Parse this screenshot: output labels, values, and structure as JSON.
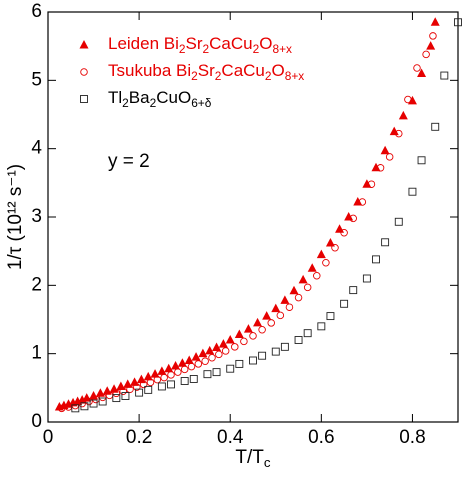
{
  "chart_data": {
    "type": "scatter",
    "x_label": "T/Tc",
    "y_label": "1/τ (10¹² s⁻¹)",
    "annotation": "y = 2",
    "xlim": [
      0,
      0.9
    ],
    "ylim": [
      0,
      6
    ],
    "xticks": [
      0,
      0.2,
      0.4,
      0.6,
      0.8
    ],
    "yticks": [
      0,
      1,
      2,
      3,
      4,
      5,
      6
    ],
    "series": [
      {
        "name": "Leiden Bi2Sr2CaCu2O8+x",
        "color": "#e60000",
        "marker": "triangle",
        "x": [
          0.025,
          0.035,
          0.045,
          0.055,
          0.065,
          0.075,
          0.085,
          0.1,
          0.115,
          0.13,
          0.145,
          0.16,
          0.175,
          0.19,
          0.205,
          0.22,
          0.235,
          0.25,
          0.265,
          0.28,
          0.295,
          0.31,
          0.325,
          0.34,
          0.355,
          0.37,
          0.385,
          0.4,
          0.42,
          0.44,
          0.46,
          0.48,
          0.5,
          0.52,
          0.54,
          0.56,
          0.58,
          0.6,
          0.62,
          0.64,
          0.66,
          0.68,
          0.7,
          0.72,
          0.74,
          0.76,
          0.78,
          0.8,
          0.82,
          0.84,
          0.85
        ],
        "values": [
          0.22,
          0.24,
          0.26,
          0.28,
          0.3,
          0.32,
          0.35,
          0.38,
          0.42,
          0.45,
          0.48,
          0.52,
          0.55,
          0.58,
          0.62,
          0.66,
          0.7,
          0.74,
          0.78,
          0.82,
          0.86,
          0.9,
          0.95,
          1.0,
          1.04,
          1.09,
          1.14,
          1.2,
          1.28,
          1.36,
          1.45,
          1.55,
          1.66,
          1.78,
          1.92,
          2.08,
          2.25,
          2.45,
          2.62,
          2.82,
          3.0,
          3.22,
          3.48,
          3.72,
          3.97,
          4.25,
          4.48,
          4.7,
          5.1,
          5.5,
          5.85
        ]
      },
      {
        "name": "Tsukuba Bi2Sr2CaCu2O8+x",
        "color": "#e60000",
        "marker": "circle",
        "x": [
          0.03,
          0.045,
          0.06,
          0.075,
          0.09,
          0.105,
          0.12,
          0.135,
          0.15,
          0.165,
          0.18,
          0.195,
          0.21,
          0.225,
          0.24,
          0.255,
          0.27,
          0.285,
          0.3,
          0.315,
          0.33,
          0.345,
          0.36,
          0.375,
          0.39,
          0.41,
          0.43,
          0.45,
          0.47,
          0.49,
          0.51,
          0.53,
          0.55,
          0.57,
          0.59,
          0.61,
          0.63,
          0.65,
          0.67,
          0.69,
          0.71,
          0.73,
          0.75,
          0.77,
          0.79,
          0.81,
          0.83,
          0.845
        ],
        "values": [
          0.2,
          0.22,
          0.24,
          0.27,
          0.3,
          0.33,
          0.36,
          0.39,
          0.42,
          0.45,
          0.48,
          0.51,
          0.55,
          0.58,
          0.62,
          0.65,
          0.69,
          0.73,
          0.77,
          0.81,
          0.85,
          0.89,
          0.94,
          0.99,
          1.04,
          1.1,
          1.18,
          1.26,
          1.35,
          1.45,
          1.56,
          1.68,
          1.82,
          1.97,
          2.14,
          2.33,
          2.55,
          2.77,
          2.98,
          3.22,
          3.48,
          3.72,
          3.88,
          4.22,
          4.72,
          5.18,
          5.38,
          5.65
        ]
      },
      {
        "name": "Tl2Ba2CuO6+δ",
        "color": "#222222",
        "marker": "square",
        "x": [
          0.06,
          0.08,
          0.1,
          0.12,
          0.15,
          0.17,
          0.2,
          0.22,
          0.25,
          0.27,
          0.3,
          0.32,
          0.35,
          0.37,
          0.4,
          0.42,
          0.45,
          0.47,
          0.5,
          0.52,
          0.55,
          0.57,
          0.6,
          0.62,
          0.65,
          0.67,
          0.7,
          0.72,
          0.74,
          0.77,
          0.8,
          0.82,
          0.85,
          0.87,
          0.9
        ],
        "values": [
          0.2,
          0.23,
          0.27,
          0.3,
          0.35,
          0.38,
          0.43,
          0.47,
          0.52,
          0.55,
          0.6,
          0.63,
          0.7,
          0.73,
          0.78,
          0.85,
          0.9,
          0.97,
          1.03,
          1.1,
          1.2,
          1.3,
          1.4,
          1.55,
          1.73,
          1.93,
          2.1,
          2.38,
          2.63,
          2.93,
          3.37,
          3.83,
          4.32,
          5.07,
          5.85
        ]
      }
    ]
  }
}
